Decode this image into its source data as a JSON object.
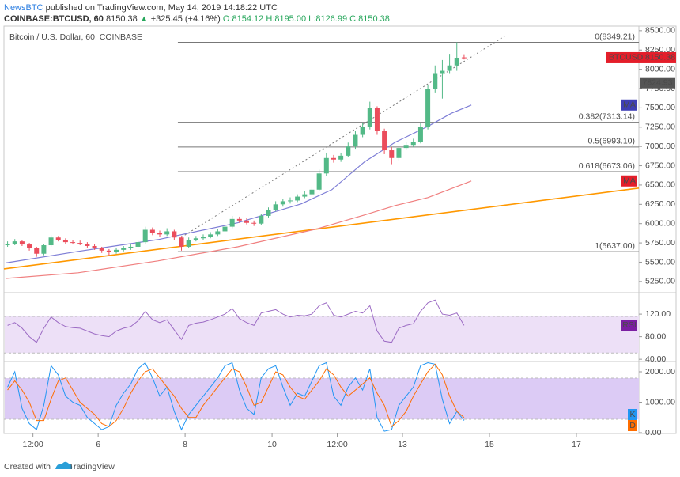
{
  "header": {
    "author": "NewsBTC",
    "published": "published on TradingView.com, May 14, 2019 14:18:22 UTC",
    "symbol": "COINBASE:BTCUSD, 60",
    "price": "8150.38",
    "arrow": "▲",
    "change": "+325.45 (+4.16%)",
    "open": "O:8154.12",
    "high": "H:8195.00",
    "low": "L:8126.99",
    "close": "C:8150.38"
  },
  "footer": {
    "created": "Created with",
    "brand": "TradingView"
  },
  "chart_data": {
    "type": "candlestick",
    "title": "Bitcoin / U.S. Dollar, 60, COINBASE",
    "up_color": "#53b987",
    "down_color": "#eb4d5c",
    "x": [
      -2,
      2,
      6,
      10,
      14,
      18,
      22,
      26,
      30,
      34,
      38,
      42,
      46,
      50,
      54,
      58,
      62,
      66,
      70,
      74,
      78,
      82,
      86,
      90,
      94,
      98,
      102,
      106,
      110,
      114,
      118,
      122,
      126,
      130,
      134,
      138,
      142,
      146,
      150,
      154,
      158,
      162,
      166,
      170,
      174,
      178,
      182,
      186,
      190,
      194,
      198,
      202,
      206,
      210,
      214,
      218,
      222,
      226,
      230,
      234,
      238,
      242,
      246,
      250
    ],
    "open": [
      5720,
      5740,
      5770,
      5730,
      5680,
      5610,
      5720,
      5820,
      5790,
      5760,
      5750,
      5740,
      5710,
      5680,
      5650,
      5630,
      5660,
      5680,
      5700,
      5760,
      5920,
      5880,
      5860,
      5900,
      5820,
      5700,
      5790,
      5810,
      5830,
      5860,
      5900,
      5960,
      6060,
      6040,
      6010,
      6000,
      6100,
      6180,
      6250,
      6290,
      6300,
      6350,
      6380,
      6440,
      6650,
      6850,
      6830,
      6880,
      7000,
      7150,
      7250,
      7500,
      7200,
      6950,
      6850,
      6980,
      7020,
      7060,
      7250,
      7750,
      7950,
      7980,
      8050,
      8154.12
    ],
    "high": [
      5770,
      5800,
      5790,
      5750,
      5700,
      5740,
      5850,
      5840,
      5810,
      5790,
      5780,
      5760,
      5730,
      5700,
      5670,
      5690,
      5710,
      5730,
      5790,
      5960,
      5950,
      5910,
      5940,
      5920,
      5840,
      5820,
      5840,
      5860,
      5890,
      5930,
      5990,
      6100,
      6090,
      6070,
      6040,
      6130,
      6210,
      6290,
      6320,
      6340,
      6380,
      6420,
      6480,
      6700,
      6920,
      6890,
      6920,
      7050,
      7200,
      7310,
      7580,
      7520,
      7230,
      6990,
      7010,
      7060,
      7100,
      7300,
      7800,
      8050,
      8120,
      8200,
      8349.21,
      8195
    ],
    "low": [
      5700,
      5720,
      5710,
      5650,
      5570,
      5590,
      5700,
      5770,
      5740,
      5730,
      5720,
      5690,
      5660,
      5620,
      5590,
      5610,
      5640,
      5660,
      5680,
      5740,
      5850,
      5830,
      5840,
      5790,
      5650,
      5680,
      5770,
      5790,
      5810,
      5840,
      5880,
      5940,
      6010,
      5990,
      5970,
      5980,
      6080,
      6160,
      6220,
      6260,
      6280,
      6330,
      6360,
      6420,
      6620,
      6790,
      6800,
      6860,
      6970,
      7120,
      7220,
      7150,
      6900,
      6770,
      6820,
      6950,
      6990,
      7040,
      7220,
      7700,
      7620,
      7950,
      7980,
      8126.99
    ],
    "close": [
      5740,
      5770,
      5730,
      5680,
      5610,
      5720,
      5820,
      5790,
      5760,
      5750,
      5740,
      5710,
      5680,
      5650,
      5630,
      5660,
      5680,
      5700,
      5760,
      5920,
      5880,
      5860,
      5900,
      5820,
      5700,
      5790,
      5810,
      5830,
      5860,
      5900,
      5960,
      6060,
      6040,
      6010,
      6000,
      6100,
      6180,
      6250,
      6290,
      6300,
      6350,
      6380,
      6440,
      6650,
      6850,
      6830,
      6880,
      7000,
      7150,
      7250,
      7500,
      7200,
      6950,
      6850,
      6980,
      7020,
      7060,
      7250,
      7750,
      7950,
      7980,
      8050,
      8150,
      8150.38
    ],
    "xlim": [
      -4,
      346.5
    ],
    "xticks": [
      {
        "value": 12,
        "label": "12:00"
      },
      {
        "value": 48,
        "label": "6"
      },
      {
        "value": 96,
        "label": "8"
      },
      {
        "value": 144,
        "label": "10"
      },
      {
        "value": 180,
        "label": "12:00"
      },
      {
        "value": 216,
        "label": "13"
      },
      {
        "value": 264,
        "label": "15"
      },
      {
        "value": 312,
        "label": "17"
      }
    ],
    "ylim": [
      5105,
      8560
    ],
    "yticks": [
      {
        "value": 5250,
        "label": "5250.00"
      },
      {
        "value": 5500,
        "label": "5500.00"
      },
      {
        "value": 5750,
        "label": "5750.00"
      },
      {
        "value": 6000,
        "label": "6000.00"
      },
      {
        "value": 6250,
        "label": "6250.00"
      },
      {
        "value": 6500,
        "label": "6500.00"
      },
      {
        "value": 6750,
        "label": "6750.00"
      },
      {
        "value": 7000,
        "label": "7000.00"
      },
      {
        "value": 7250,
        "label": "7250.00"
      },
      {
        "value": 7500,
        "label": "7500.00"
      },
      {
        "value": 7750,
        "label": "7750.00"
      },
      {
        "value": 8000,
        "label": "8000.00"
      },
      {
        "value": 8250,
        "label": "8250.00"
      },
      {
        "value": 8500,
        "label": "8500.00"
      }
    ],
    "fib_start_x": 92,
    "fib_levels": [
      {
        "value": 8349.21,
        "label": "0(8349.21)"
      },
      {
        "value": 7313.14,
        "label": "0.382(7313.14)"
      },
      {
        "value": 6993.1,
        "label": "0.5(6993.10)"
      },
      {
        "value": 6673.06,
        "label": "0.618(6673.06)"
      },
      {
        "value": 5637.0,
        "label": "1(5637.00)"
      }
    ],
    "trendline": {
      "color": "#ff9800",
      "x": [
        -4,
        346.5
      ],
      "values": [
        5414,
        6460
      ]
    },
    "projection": {
      "color": "#777777",
      "x": [
        94,
        273
      ],
      "values": [
        5824,
        8438
      ]
    },
    "moving_averages": [
      {
        "name": "MA",
        "color": "#7e7ed6",
        "x": [
          -3,
          37,
          81,
          125,
          160,
          177,
          195,
          212,
          230,
          243,
          254
        ],
        "values": [
          5490,
          5640,
          5793,
          6010,
          6255,
          6440,
          6800,
          7055,
          7260,
          7430,
          7537
        ]
      },
      {
        "name": "MA",
        "color": "#f08080",
        "x": [
          -3,
          37,
          81,
          125,
          168,
          195,
          212,
          230,
          254
        ],
        "values": [
          5290,
          5363,
          5517,
          5700,
          5927,
          6112,
          6235,
          6337,
          6553
        ]
      }
    ],
    "last_price": {
      "symbol": "BTCUSD",
      "value": 8150.38,
      "color": "#e41e2a"
    },
    "marker_price": 7824.93,
    "rsi": {
      "name": "RSI",
      "color": "#9c6bc4",
      "band_color": "#ede0f7",
      "band": [
        51,
        116
      ],
      "ylim": [
        36,
        158
      ],
      "yticks": [
        {
          "value": 40,
          "label": "40.00"
        },
        {
          "value": 80,
          "label": "80.00"
        },
        {
          "value": 120,
          "label": "120.00"
        }
      ],
      "values": [
        100,
        105,
        95,
        80,
        70,
        95,
        115,
        105,
        98,
        96,
        95,
        90,
        85,
        82,
        80,
        90,
        95,
        98,
        108,
        125,
        110,
        105,
        110,
        92,
        75,
        100,
        104,
        106,
        110,
        115,
        120,
        130,
        112,
        105,
        100,
        122,
        125,
        128,
        120,
        115,
        118,
        117,
        120,
        135,
        140,
        118,
        115,
        120,
        125,
        122,
        135,
        90,
        72,
        70,
        95,
        100,
        103,
        125,
        140,
        145,
        120,
        118,
        122,
        100
      ]
    },
    "stoch": {
      "band_color": "#dccbf5",
      "band": [
        442,
        1792
      ],
      "ylim": [
        -26,
        2338
      ],
      "yticks": [
        {
          "value": 0,
          "label": "0.00"
        },
        {
          "value": 1000,
          "label": "1000.00"
        },
        {
          "value": 2000,
          "label": "2000.00"
        }
      ],
      "series": [
        {
          "name": "K",
          "color": "#2196f3",
          "values": [
            1500,
            2000,
            800,
            300,
            100,
            900,
            2200,
            1900,
            1200,
            1000,
            900,
            500,
            300,
            100,
            200,
            900,
            1300,
            1600,
            2100,
            2300,
            1800,
            1200,
            1500,
            700,
            100,
            600,
            900,
            1200,
            1500,
            1800,
            2200,
            2300,
            1400,
            800,
            600,
            1800,
            2100,
            2200,
            1500,
            900,
            1300,
            1200,
            1700,
            2200,
            2300,
            1200,
            900,
            1500,
            1800,
            1400,
            2100,
            500,
            50,
            100,
            900,
            1200,
            1500,
            2200,
            2300,
            2250,
            1100,
            300,
            700,
            400
          ]
        },
        {
          "name": "D",
          "color": "#ff6d00",
          "values": [
            1400,
            1700,
            1400,
            1000,
            400,
            400,
            1100,
            1700,
            1800,
            1400,
            1000,
            800,
            600,
            300,
            200,
            400,
            800,
            1300,
            1700,
            2000,
            2100,
            1800,
            1500,
            1200,
            800,
            500,
            500,
            900,
            1200,
            1500,
            1800,
            2100,
            2000,
            1500,
            900,
            1000,
            1500,
            2000,
            1900,
            1500,
            1200,
            1100,
            1400,
            1700,
            2100,
            1900,
            1500,
            1200,
            1400,
            1600,
            1800,
            1300,
            900,
            200,
            400,
            700,
            1200,
            1600,
            2000,
            2250,
            1900,
            1200,
            700,
            500
          ]
        }
      ]
    }
  }
}
